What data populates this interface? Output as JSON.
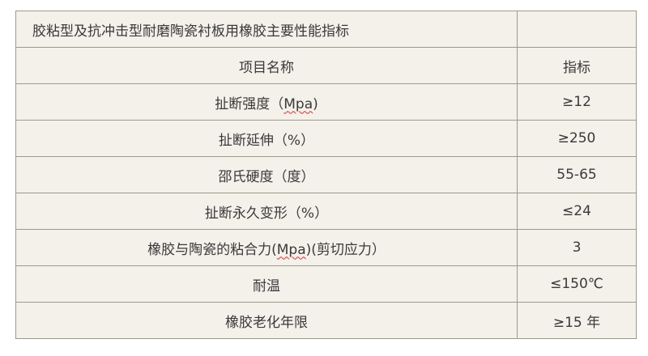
{
  "title": "胶粘型及抗冲击型耐磨陶瓷衬板用橡胶主要性能指标",
  "header": {
    "item": "项目名称",
    "value": "指标"
  },
  "rows": [
    {
      "item_pre": "扯断强度（",
      "item_mark": "Mpa",
      "item_post": ")",
      "value": "≥12"
    },
    {
      "item_pre": "扯断延伸（%）",
      "item_mark": "",
      "item_post": "",
      "value": "≥250"
    },
    {
      "item_pre": "邵氏硬度（度）",
      "item_mark": "",
      "item_post": "",
      "value": "55-65"
    },
    {
      "item_pre": "扯断永久变形（%）",
      "item_mark": "",
      "item_post": "",
      "value": "≤24"
    },
    {
      "item_pre": "橡胶与陶瓷的粘合力(",
      "item_mark": "Mpa",
      "item_post": ")(剪切应力）",
      "value": "3"
    },
    {
      "item_pre": "耐温",
      "item_mark": "",
      "item_post": "",
      "value": "≤150℃"
    },
    {
      "item_pre": "橡胶老化年限",
      "item_mark": "",
      "item_post": "",
      "value": "≥15 年"
    }
  ]
}
